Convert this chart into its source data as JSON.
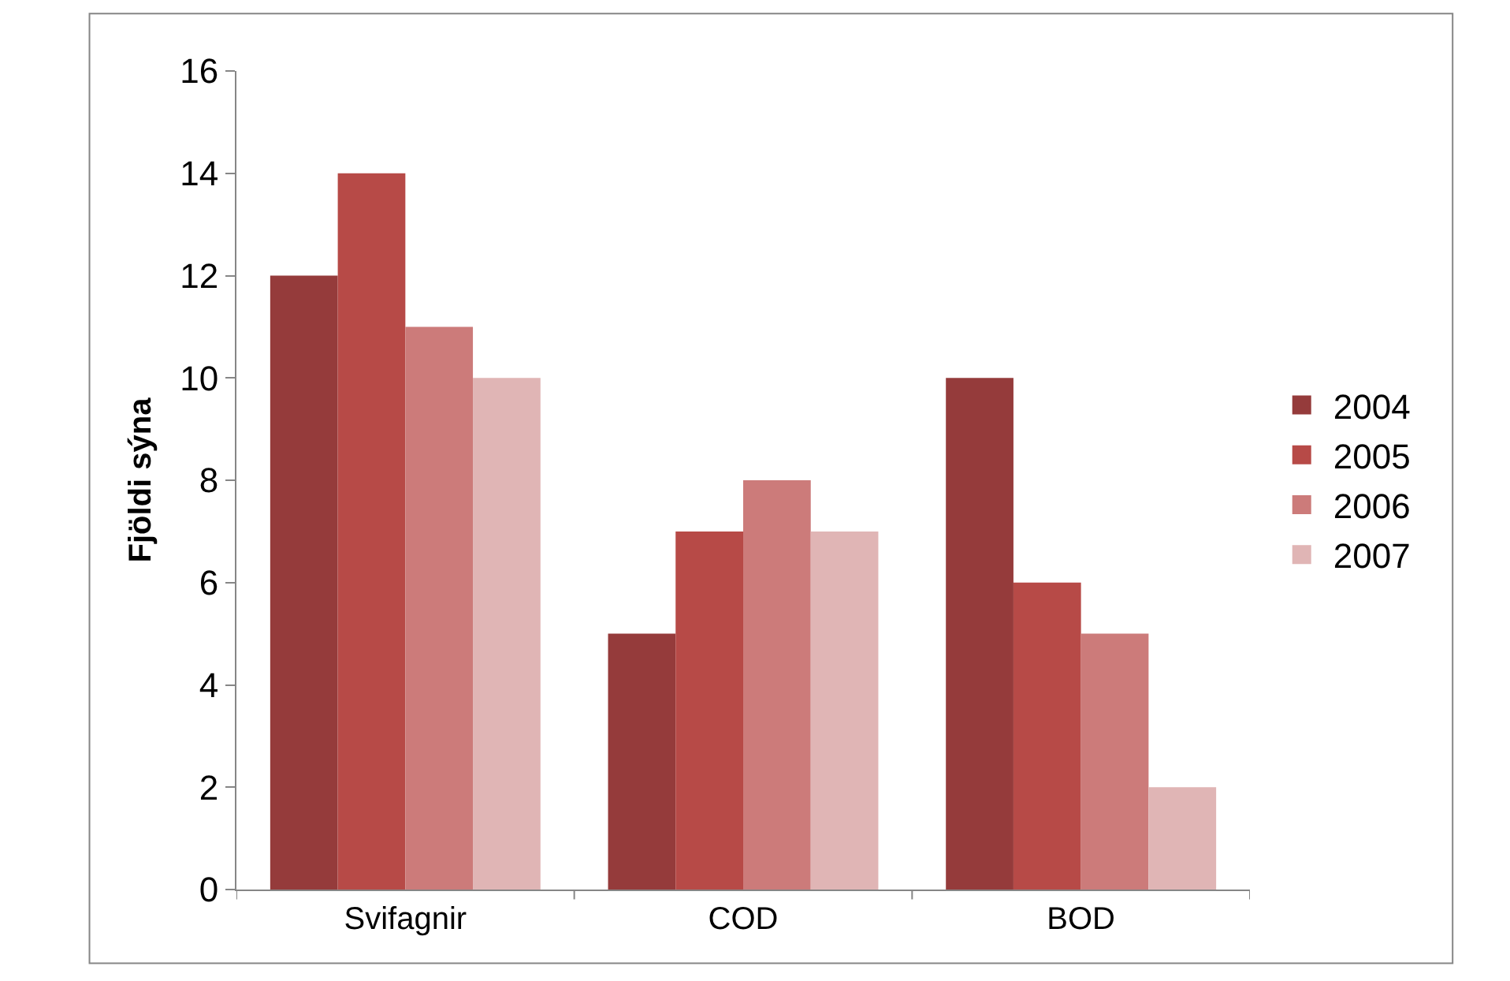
{
  "chart_data": {
    "type": "bar",
    "ylabel": "Fjöldi sýna",
    "categories": [
      "Svifagnir",
      "COD",
      "BOD"
    ],
    "series": [
      {
        "name": "2004",
        "color": "#953b3b",
        "values": [
          12,
          5,
          10
        ]
      },
      {
        "name": "2005",
        "color": "#b74a47",
        "values": [
          14,
          7,
          6
        ]
      },
      {
        "name": "2006",
        "color": "#cc7b7a",
        "values": [
          11,
          8,
          5
        ]
      },
      {
        "name": "2007",
        "color": "#e0b5b5",
        "values": [
          10,
          7,
          2
        ]
      }
    ],
    "ylim": [
      0,
      16
    ],
    "yticks": [
      0,
      2,
      4,
      6,
      8,
      10,
      12,
      14,
      16
    ],
    "grid": false,
    "legend": "right"
  }
}
